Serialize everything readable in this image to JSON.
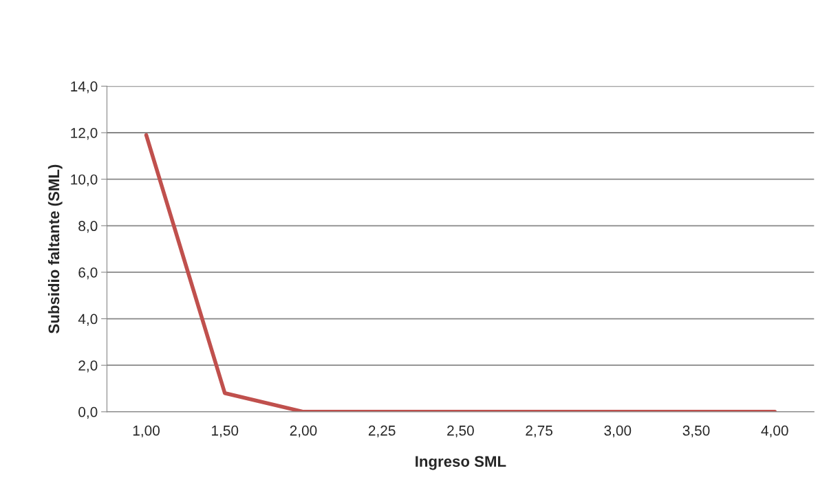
{
  "chart_data": {
    "type": "line",
    "xlabel": "Ingreso SML",
    "ylabel": "Subsidio faltante (SML)",
    "categories": [
      "1,00",
      "1,50",
      "2,00",
      "2,25",
      "2,50",
      "2,75",
      "3,00",
      "3,50",
      "4,00"
    ],
    "series": [
      {
        "color": "#c0504d",
        "values": [
          11.9,
          0.8,
          0,
          0,
          0,
          0,
          0,
          0,
          0
        ]
      }
    ],
    "ylim": [
      0,
      14
    ],
    "yticks": [
      {
        "value": 0,
        "label": "0,0"
      },
      {
        "value": 2,
        "label": "2,0"
      },
      {
        "value": 4,
        "label": "4,0"
      },
      {
        "value": 6,
        "label": "6,0"
      },
      {
        "value": 8,
        "label": "8,0"
      },
      {
        "value": 10,
        "label": "10,0"
      },
      {
        "value": 12,
        "label": "12,0"
      },
      {
        "value": 14,
        "label": "14,0"
      }
    ],
    "grid": "y",
    "marker": "none",
    "line_style": "solid",
    "legend": false
  }
}
